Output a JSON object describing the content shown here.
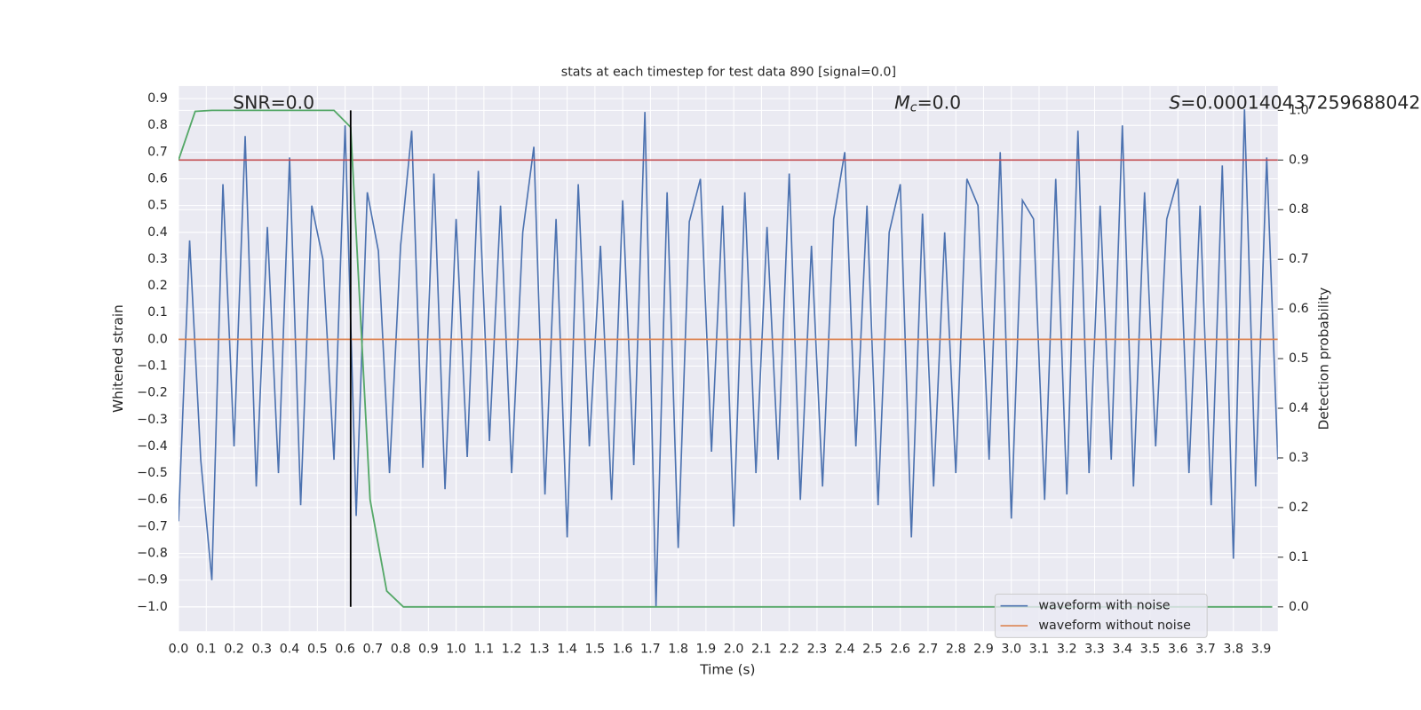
{
  "chart_data": {
    "type": "line",
    "title": "stats at each timestep for test data 890 [signal=0.0]",
    "xlabel": "Time (s)",
    "ylabel": "Whitened strain",
    "y2label": "Detection probability",
    "xlim": [
      0,
      3.96
    ],
    "ylim": [
      -1.091,
      0.947
    ],
    "y2lim": [
      -0.049,
      1.049
    ],
    "grid": true,
    "background": "#eaeaf2",
    "grid_color": "#ffffff",
    "legend_position": "lower right",
    "xticks": [
      {
        "value": 0,
        "label": "0.0"
      },
      0.1,
      0.2,
      0.3,
      0.4,
      0.5,
      0.6,
      0.7,
      0.8,
      0.9,
      {
        "value": 1,
        "label": "1.0"
      },
      1.1,
      1.2,
      1.3,
      1.4,
      1.5,
      1.6,
      1.7,
      1.8,
      1.9,
      {
        "value": 2,
        "label": "2.0"
      },
      2.1,
      2.2,
      2.3,
      2.4,
      2.5,
      2.6,
      2.7,
      2.8,
      2.9,
      {
        "value": 3,
        "label": "3.0"
      },
      3.1,
      3.2,
      3.3,
      3.4,
      3.5,
      3.6,
      3.7,
      3.8,
      3.9
    ],
    "yticks": [
      0.9,
      0.8,
      0.7,
      0.6,
      0.5,
      0.4,
      0.3,
      0.2,
      0.1,
      {
        "value": 0,
        "label": "0.0"
      },
      {
        "value": -0.1,
        "label": "−0.1"
      },
      {
        "value": -0.2,
        "label": "−0.2"
      },
      {
        "value": -0.3,
        "label": "−0.3"
      },
      {
        "value": -0.4,
        "label": "−0.4"
      },
      {
        "value": -0.5,
        "label": "−0.5"
      },
      {
        "value": -0.6,
        "label": "−0.6"
      },
      {
        "value": -0.7,
        "label": "−0.7"
      },
      {
        "value": -0.8,
        "label": "−0.8"
      },
      {
        "value": -0.9,
        "label": "−0.9"
      },
      {
        "value": -1,
        "label": "−1.0"
      }
    ],
    "y2ticks": [
      {
        "value": 1,
        "label": "1.0"
      },
      0.9,
      0.8,
      0.7,
      0.6,
      0.5,
      0.4,
      0.3,
      0.2,
      0.1,
      {
        "value": 0,
        "label": "0.0"
      }
    ],
    "series": [
      {
        "name": "waveform with noise",
        "color": "#4c72b0",
        "x": [
          0,
          0.04,
          0.08,
          0.12,
          0.16,
          0.2,
          0.24,
          0.28,
          0.32,
          0.36,
          0.4,
          0.44,
          0.48,
          0.52,
          0.56,
          0.6,
          0.64,
          0.68,
          0.72,
          0.76,
          0.8,
          0.84,
          0.88,
          0.92,
          0.96,
          1,
          1.04,
          1.08,
          1.12,
          1.16,
          1.2,
          1.24,
          1.28,
          1.32,
          1.36,
          1.4,
          1.44,
          1.48,
          1.52,
          1.56,
          1.6,
          1.64,
          1.68,
          1.72,
          1.76,
          1.8,
          1.84,
          1.88,
          1.92,
          1.96,
          2,
          2.04,
          2.08,
          2.12,
          2.16,
          2.2,
          2.24,
          2.28,
          2.32,
          2.36,
          2.4,
          2.44,
          2.48,
          2.52,
          2.56,
          2.6,
          2.64,
          2.68,
          2.72,
          2.76,
          2.8,
          2.84,
          2.88,
          2.92,
          2.96,
          3,
          3.04,
          3.08,
          3.12,
          3.16,
          3.2,
          3.24,
          3.28,
          3.32,
          3.36,
          3.4,
          3.44,
          3.48,
          3.52,
          3.56,
          3.6,
          3.64,
          3.68,
          3.72,
          3.76,
          3.8,
          3.84,
          3.88,
          3.92,
          3.96
        ],
        "values": [
          -0.68,
          0.37,
          -0.45,
          -0.9,
          0.58,
          -0.4,
          0.76,
          -0.55,
          0.42,
          -0.5,
          0.68,
          -0.62,
          0.5,
          0.3,
          -0.45,
          0.8,
          -0.66,
          0.55,
          0.33,
          -0.5,
          0.35,
          0.78,
          -0.48,
          0.62,
          -0.56,
          0.45,
          -0.44,
          0.63,
          -0.38,
          0.5,
          -0.5,
          0.4,
          0.72,
          -0.58,
          0.45,
          -0.74,
          0.58,
          -0.4,
          0.35,
          -0.6,
          0.52,
          -0.47,
          0.85,
          -1.0,
          0.55,
          -0.78,
          0.44,
          0.6,
          -0.42,
          0.5,
          -0.7,
          0.55,
          -0.5,
          0.42,
          -0.45,
          0.62,
          -0.6,
          0.35,
          -0.55,
          0.45,
          0.7,
          -0.4,
          0.5,
          -0.62,
          0.4,
          0.58,
          -0.74,
          0.47,
          -0.55,
          0.4,
          -0.5,
          0.6,
          0.5,
          -0.45,
          0.7,
          -0.67,
          0.52,
          0.45,
          -0.6,
          0.6,
          -0.58,
          0.78,
          -0.5,
          0.5,
          -0.45,
          0.8,
          -0.55,
          0.55,
          -0.4,
          0.45,
          0.6,
          -0.5,
          0.5,
          -0.62,
          0.65,
          -0.82,
          0.86,
          -0.55,
          0.68,
          -0.45
        ]
      },
      {
        "name": "waveform without noise",
        "color": "#dd8452",
        "x": [
          0,
          3.96
        ],
        "values": [
          0,
          0
        ]
      }
    ],
    "detection_probability": {
      "color": "#55a868",
      "axis": "y2",
      "x": [
        0,
        0.06,
        0.12,
        0.5,
        0.56,
        0.62,
        0.69,
        0.75,
        0.81,
        3.94
      ],
      "values": [
        0.9,
        0.998,
        1.0,
        1.0,
        1.0,
        0.966,
        0.216,
        0.032,
        0,
        0
      ]
    },
    "threshold": {
      "value": 0.9,
      "color": "#c44e52",
      "axis": "y2"
    },
    "marker_line": {
      "x": 0.62,
      "y2_range": [
        0,
        1.0
      ],
      "color": "#000000"
    },
    "annotations": {
      "snr": "SNR=0.0",
      "mc": {
        "symbol": "M",
        "subscript": "c",
        "text": "=0.0"
      },
      "s": {
        "symbol": "S",
        "text": "=0.000140437259688042"
      }
    }
  }
}
